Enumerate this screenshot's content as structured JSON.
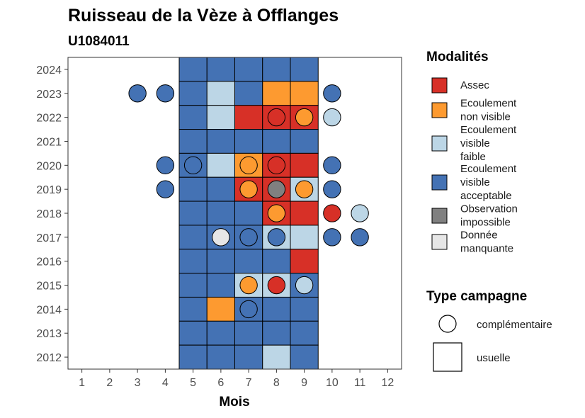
{
  "chart_data": {
    "type": "heatmap",
    "title": "Ruisseau de la Vèze à Offlanges",
    "subtitle": "U1084011",
    "xlabel": "Mois",
    "ylabel": "",
    "x_ticks": [
      "1",
      "2",
      "3",
      "4",
      "5",
      "6",
      "7",
      "8",
      "9",
      "10",
      "11",
      "12"
    ],
    "y_ticks": [
      "2012",
      "2013",
      "2014",
      "2015",
      "2016",
      "2017",
      "2018",
      "2019",
      "2020",
      "2021",
      "2022",
      "2023",
      "2024"
    ],
    "xlim": [
      0.5,
      12.5
    ],
    "ylim": [
      2011.5,
      2024.5
    ],
    "grid": false,
    "legend_position": "right",
    "modalites_title": "Modalités",
    "modalites": [
      {
        "key": "assec",
        "lines": [
          "Assec"
        ],
        "color": "#d73027"
      },
      {
        "key": "nv",
        "lines": [
          "Ecoulement",
          "non visible"
        ],
        "color": "#fd9a30"
      },
      {
        "key": "faible",
        "lines": [
          "Ecoulement",
          "visible",
          "faible"
        ],
        "color": "#bcd6e6"
      },
      {
        "key": "acc",
        "lines": [
          "Ecoulement",
          "visible",
          "acceptable"
        ],
        "color": "#4472b4"
      },
      {
        "key": "obs",
        "lines": [
          "Observation",
          "impossible"
        ],
        "color": "#808080"
      },
      {
        "key": "man",
        "lines": [
          "Donnée",
          "manquante"
        ],
        "color": "#e6e6e6"
      }
    ],
    "campagne_title": "Type campagne",
    "campagnes": [
      {
        "key": "comp",
        "label": "complémentaire"
      },
      {
        "key": "usu",
        "label": "usuelle"
      }
    ],
    "usuelle": [
      {
        "year": 2024,
        "month": 5,
        "m": "acc"
      },
      {
        "year": 2024,
        "month": 6,
        "m": "acc"
      },
      {
        "year": 2024,
        "month": 7,
        "m": "acc"
      },
      {
        "year": 2024,
        "month": 8,
        "m": "acc"
      },
      {
        "year": 2024,
        "month": 9,
        "m": "acc"
      },
      {
        "year": 2023,
        "month": 5,
        "m": "acc"
      },
      {
        "year": 2023,
        "month": 6,
        "m": "faible"
      },
      {
        "year": 2023,
        "month": 7,
        "m": "acc"
      },
      {
        "year": 2023,
        "month": 8,
        "m": "nv"
      },
      {
        "year": 2023,
        "month": 9,
        "m": "nv"
      },
      {
        "year": 2022,
        "month": 5,
        "m": "acc"
      },
      {
        "year": 2022,
        "month": 6,
        "m": "faible"
      },
      {
        "year": 2022,
        "month": 7,
        "m": "assec"
      },
      {
        "year": 2022,
        "month": 8,
        "m": "assec"
      },
      {
        "year": 2022,
        "month": 9,
        "m": "assec"
      },
      {
        "year": 2021,
        "month": 5,
        "m": "acc"
      },
      {
        "year": 2021,
        "month": 6,
        "m": "acc"
      },
      {
        "year": 2021,
        "month": 7,
        "m": "acc"
      },
      {
        "year": 2021,
        "month": 8,
        "m": "acc"
      },
      {
        "year": 2021,
        "month": 9,
        "m": "acc"
      },
      {
        "year": 2020,
        "month": 5,
        "m": "acc"
      },
      {
        "year": 2020,
        "month": 6,
        "m": "faible"
      },
      {
        "year": 2020,
        "month": 7,
        "m": "nv"
      },
      {
        "year": 2020,
        "month": 8,
        "m": "assec"
      },
      {
        "year": 2020,
        "month": 9,
        "m": "assec"
      },
      {
        "year": 2019,
        "month": 5,
        "m": "acc"
      },
      {
        "year": 2019,
        "month": 6,
        "m": "acc"
      },
      {
        "year": 2019,
        "month": 7,
        "m": "assec"
      },
      {
        "year": 2019,
        "month": 8,
        "m": "assec"
      },
      {
        "year": 2019,
        "month": 9,
        "m": "faible"
      },
      {
        "year": 2018,
        "month": 5,
        "m": "acc"
      },
      {
        "year": 2018,
        "month": 6,
        "m": "acc"
      },
      {
        "year": 2018,
        "month": 7,
        "m": "acc"
      },
      {
        "year": 2018,
        "month": 8,
        "m": "assec"
      },
      {
        "year": 2018,
        "month": 9,
        "m": "assec"
      },
      {
        "year": 2017,
        "month": 5,
        "m": "acc"
      },
      {
        "year": 2017,
        "month": 6,
        "m": "acc"
      },
      {
        "year": 2017,
        "month": 7,
        "m": "acc"
      },
      {
        "year": 2017,
        "month": 8,
        "m": "faible"
      },
      {
        "year": 2017,
        "month": 9,
        "m": "faible"
      },
      {
        "year": 2016,
        "month": 5,
        "m": "acc"
      },
      {
        "year": 2016,
        "month": 6,
        "m": "acc"
      },
      {
        "year": 2016,
        "month": 7,
        "m": "acc"
      },
      {
        "year": 2016,
        "month": 8,
        "m": "acc"
      },
      {
        "year": 2016,
        "month": 9,
        "m": "assec"
      },
      {
        "year": 2015,
        "month": 5,
        "m": "acc"
      },
      {
        "year": 2015,
        "month": 6,
        "m": "acc"
      },
      {
        "year": 2015,
        "month": 7,
        "m": "faible"
      },
      {
        "year": 2015,
        "month": 8,
        "m": "faible"
      },
      {
        "year": 2015,
        "month": 9,
        "m": "acc"
      },
      {
        "year": 2014,
        "month": 5,
        "m": "acc"
      },
      {
        "year": 2014,
        "month": 6,
        "m": "nv"
      },
      {
        "year": 2014,
        "month": 7,
        "m": "acc"
      },
      {
        "year": 2014,
        "month": 8,
        "m": "acc"
      },
      {
        "year": 2014,
        "month": 9,
        "m": "acc"
      },
      {
        "year": 2013,
        "month": 5,
        "m": "acc"
      },
      {
        "year": 2013,
        "month": 6,
        "m": "acc"
      },
      {
        "year": 2013,
        "month": 7,
        "m": "acc"
      },
      {
        "year": 2013,
        "month": 8,
        "m": "acc"
      },
      {
        "year": 2013,
        "month": 9,
        "m": "acc"
      },
      {
        "year": 2012,
        "month": 5,
        "m": "acc"
      },
      {
        "year": 2012,
        "month": 6,
        "m": "acc"
      },
      {
        "year": 2012,
        "month": 7,
        "m": "acc"
      },
      {
        "year": 2012,
        "month": 8,
        "m": "faible"
      },
      {
        "year": 2012,
        "month": 9,
        "m": "acc"
      }
    ],
    "complementaire": [
      {
        "year": 2023,
        "month": 3,
        "m": "acc"
      },
      {
        "year": 2023,
        "month": 4,
        "m": "acc"
      },
      {
        "year": 2023,
        "month": 10,
        "m": "acc"
      },
      {
        "year": 2022,
        "month": 8,
        "m": "assec"
      },
      {
        "year": 2022,
        "month": 9,
        "m": "nv"
      },
      {
        "year": 2022,
        "month": 10,
        "m": "faible"
      },
      {
        "year": 2020,
        "month": 4,
        "m": "acc"
      },
      {
        "year": 2020,
        "month": 5,
        "m": "acc"
      },
      {
        "year": 2020,
        "month": 7,
        "m": "nv"
      },
      {
        "year": 2020,
        "month": 8,
        "m": "assec"
      },
      {
        "year": 2020,
        "month": 10,
        "m": "acc"
      },
      {
        "year": 2019,
        "month": 4,
        "m": "acc"
      },
      {
        "year": 2019,
        "month": 7,
        "m": "nv"
      },
      {
        "year": 2019,
        "month": 8,
        "m": "obs"
      },
      {
        "year": 2019,
        "month": 9,
        "m": "nv"
      },
      {
        "year": 2019,
        "month": 10,
        "m": "acc"
      },
      {
        "year": 2018,
        "month": 8,
        "m": "nv"
      },
      {
        "year": 2018,
        "month": 10,
        "m": "assec"
      },
      {
        "year": 2018,
        "month": 11,
        "m": "faible"
      },
      {
        "year": 2017,
        "month": 6,
        "m": "man"
      },
      {
        "year": 2017,
        "month": 7,
        "m": "acc"
      },
      {
        "year": 2017,
        "month": 8,
        "m": "acc"
      },
      {
        "year": 2017,
        "month": 10,
        "m": "acc"
      },
      {
        "year": 2017,
        "month": 11,
        "m": "acc"
      },
      {
        "year": 2015,
        "month": 7,
        "m": "nv"
      },
      {
        "year": 2015,
        "month": 8,
        "m": "assec"
      },
      {
        "year": 2015,
        "month": 9,
        "m": "faible"
      },
      {
        "year": 2014,
        "month": 7,
        "m": "acc"
      }
    ]
  }
}
